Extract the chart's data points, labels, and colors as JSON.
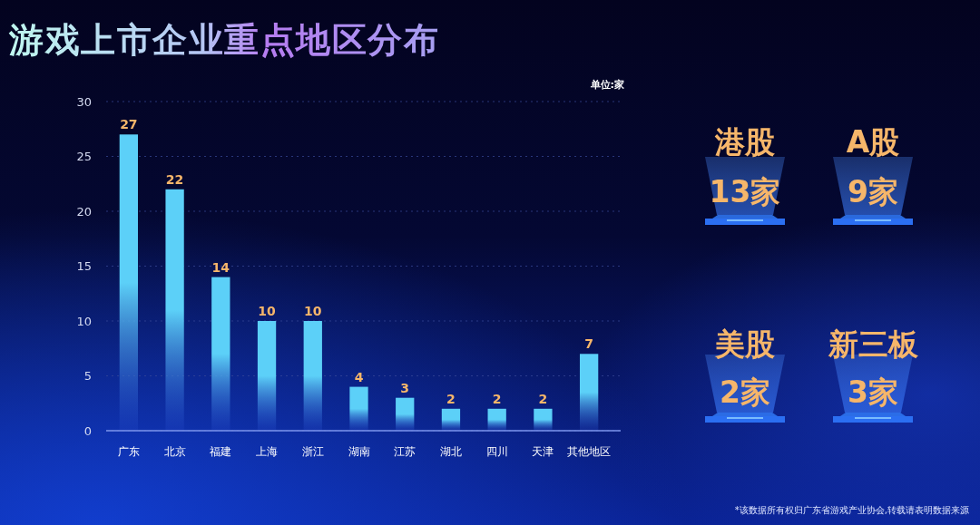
{
  "chart_data": [
    {
      "type": "bar",
      "title": "游戏上市企业重点地区分布",
      "categories": [
        "广东",
        "北京",
        "福建",
        "上海",
        "浙江",
        "湖南",
        "江苏",
        "湖北",
        "四川",
        "天津",
        "其他地区"
      ],
      "values": [
        27,
        22,
        14,
        10,
        10,
        4,
        3,
        2,
        2,
        2,
        7
      ],
      "color": "#5cd0f8",
      "ylim": [
        0,
        30
      ],
      "yticks": [
        0,
        5,
        10,
        15,
        20,
        25,
        30
      ],
      "grid": "y",
      "data_labels": true,
      "annotations": [
        "单位:家",
        "*该数据所有权归广东省游戏产业协会,转载请表明数据来源"
      ]
    },
    {
      "type": "other",
      "annotations": [
        "港股",
        "13家",
        "A股",
        "9家",
        "美股",
        "2家",
        "新三板",
        "3家"
      ]
    }
  ]
}
